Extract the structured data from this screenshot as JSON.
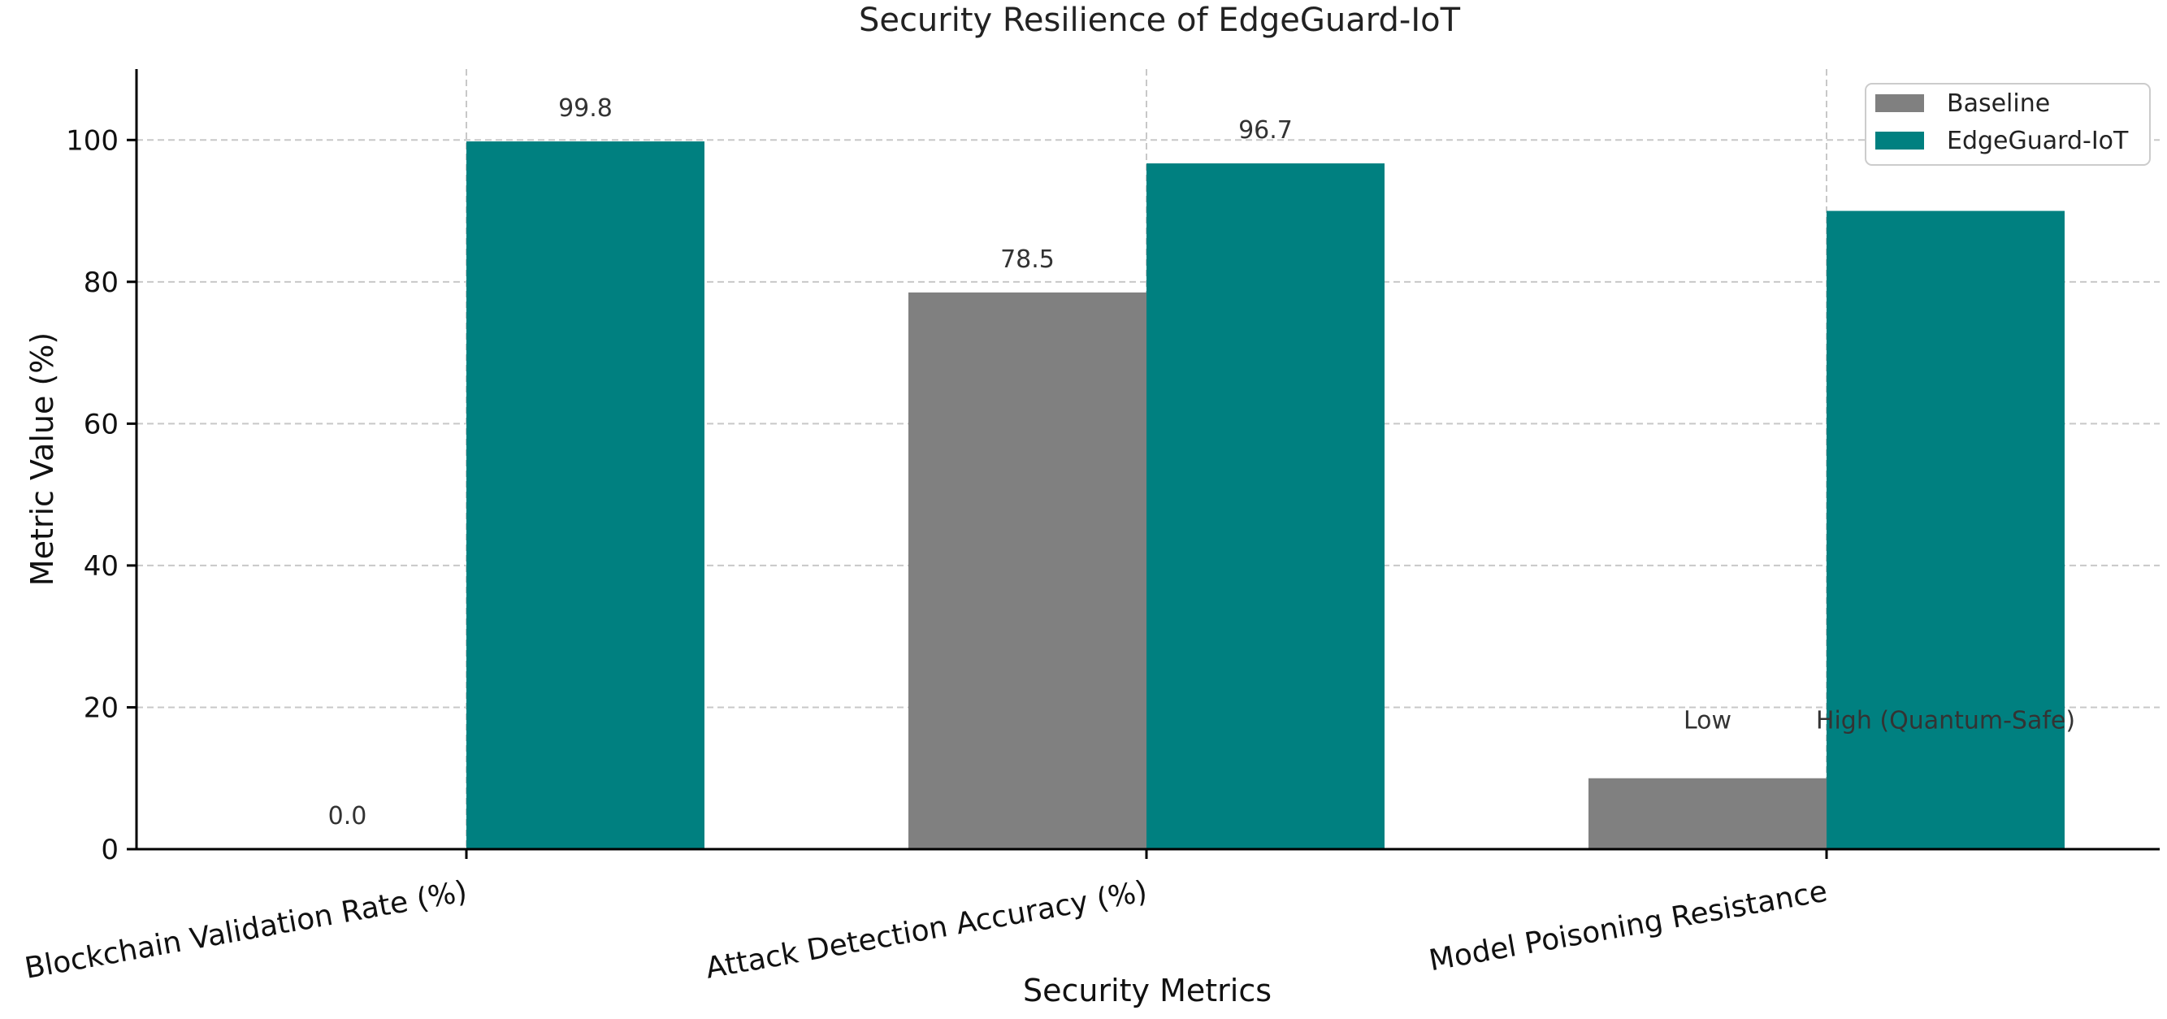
{
  "chart_data": {
    "type": "bar",
    "title": "Security Resilience of EdgeGuard-IoT",
    "xlabel": "Security Metrics",
    "ylabel": "Metric Value (%)",
    "ylim": [
      0,
      110
    ],
    "yticks": [
      0,
      20,
      40,
      60,
      80,
      100
    ],
    "grid": true,
    "legend_position": "top-right",
    "categories": [
      "Blockchain Validation Rate (%)",
      "Attack Detection Accuracy (%)",
      "Model Poisoning Resistance"
    ],
    "series": [
      {
        "name": "Baseline",
        "color": "#808080",
        "values": [
          0,
          78.5,
          10
        ],
        "labels": [
          "0.0",
          "78.5",
          "Low"
        ]
      },
      {
        "name": "EdgeGuard-IoT",
        "color": "#008080",
        "values": [
          99.8,
          96.7,
          90
        ],
        "labels": [
          "99.8",
          "96.7",
          "High (Quantum-Safe)"
        ]
      }
    ]
  }
}
